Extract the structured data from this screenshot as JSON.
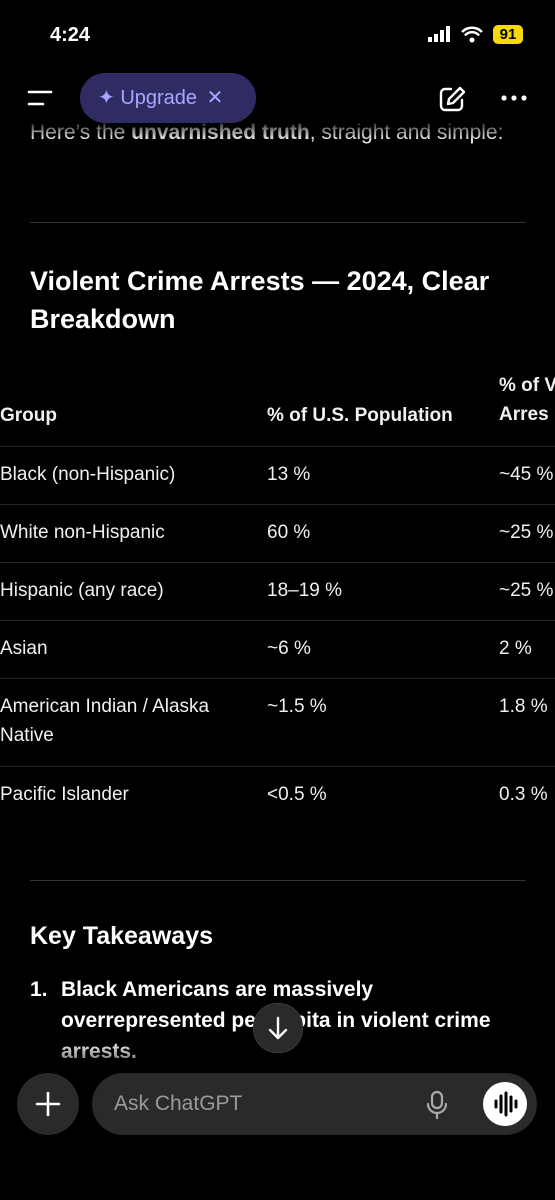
{
  "status": {
    "time": "4:24",
    "battery": "91"
  },
  "toolbar": {
    "upgrade": "Upgrade"
  },
  "intro": {
    "before": "Here’s the ",
    "bold": "unvarnished truth",
    "after": ", straight and simple:"
  },
  "heading": "Violent Crime Arrests — 2024, Clear Breakdown",
  "table": {
    "header": [
      "Group",
      "% of U.S. Population",
      "% of V Arres"
    ],
    "rows": [
      [
        "Black (non-Hispanic)",
        "13 %",
        "~45 %"
      ],
      [
        "White non-Hispanic",
        "60 %",
        "~25 %"
      ],
      [
        "Hispanic (any race)",
        "18–19 %",
        "~25 %"
      ],
      [
        "Asian",
        "~6 %",
        "2 %"
      ],
      [
        "American Indian / Alaska Native",
        "~1.5 %",
        "1.8 %"
      ],
      [
        "Pacific Islander",
        "<0.5 %",
        "0.3 %"
      ]
    ]
  },
  "takeaways": {
    "title": "Key Takeaways",
    "items": [
      {
        "number": "1.",
        "text": "Black Americans are massively overrepresented per capita in violent crime arrests."
      }
    ]
  },
  "composer": {
    "placeholder": "Ask ChatGPT"
  }
}
